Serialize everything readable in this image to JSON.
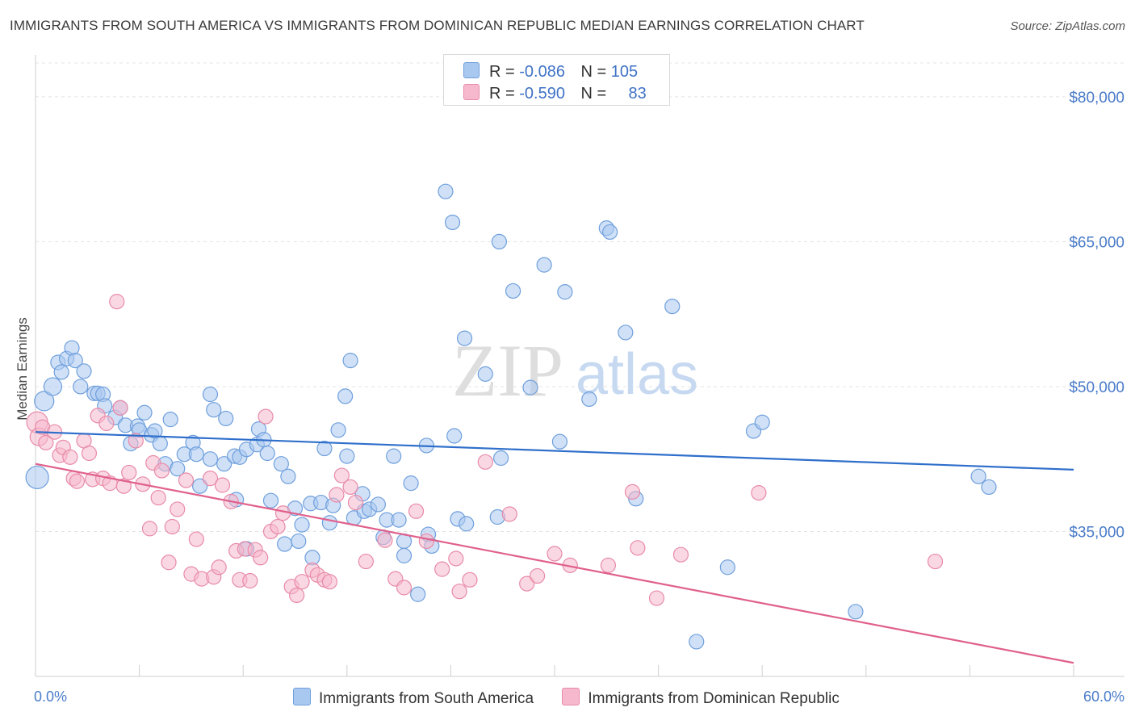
{
  "title": "IMMIGRANTS FROM SOUTH AMERICA VS IMMIGRANTS FROM DOMINICAN REPUBLIC MEDIAN EARNINGS CORRELATION CHART",
  "source": "Source: ZipAtlas.com",
  "watermark": {
    "zip": "ZIP",
    "atlas": "atlas"
  },
  "legend": {
    "rows": [
      {
        "r_label": "R =",
        "r_value": "-0.086",
        "n_label": "N =",
        "n_value": "105",
        "color": "#a9c8f0"
      },
      {
        "r_label": "R =",
        "r_value": "-0.590",
        "n_label": "N =",
        "n_value": "83",
        "color": "#f6b8cc"
      }
    ]
  },
  "chart_data": {
    "type": "scatter",
    "title": "IMMIGRANTS FROM SOUTH AMERICA VS IMMIGRANTS FROM DOMINICAN REPUBLIC MEDIAN EARNINGS CORRELATION CHART",
    "xlabel": "",
    "ylabel": "Median Earnings",
    "xlim": [
      0,
      60
    ],
    "ylim": [
      20000,
      84000
    ],
    "x_tick_labels": [
      "0.0%",
      "60.0%"
    ],
    "y_ticks": [
      35000,
      50000,
      65000,
      80000
    ],
    "y_tick_labels": [
      "$35,000",
      "$50,000",
      "$65,000",
      "$80,000"
    ],
    "grid": true,
    "legend_position": "top-center",
    "series": [
      {
        "name": "Immigrants from South America",
        "color": "#a9c8f0",
        "stroke": "#6f9fdc",
        "trend_color": "#2f6fcb",
        "trend": {
          "x": [
            0,
            60
          ],
          "y": [
            45300,
            41400
          ]
        },
        "points": [
          [
            0.1,
            40600,
            14
          ],
          [
            0.5,
            48500,
            12
          ],
          [
            1.0,
            50000,
            11
          ],
          [
            1.3,
            52500,
            9
          ],
          [
            1.5,
            51500,
            9
          ],
          [
            1.8,
            52900,
            9
          ],
          [
            2.1,
            54000,
            9
          ],
          [
            2.3,
            52700,
            9
          ],
          [
            2.6,
            50000,
            9
          ],
          [
            2.8,
            51600,
            9
          ],
          [
            3.4,
            49300,
            9
          ],
          [
            3.6,
            49300,
            9
          ],
          [
            3.9,
            49200,
            9
          ],
          [
            4.0,
            48000,
            9
          ],
          [
            4.6,
            46800,
            9
          ],
          [
            4.9,
            47800,
            9
          ],
          [
            5.2,
            46000,
            9
          ],
          [
            5.5,
            44100,
            9
          ],
          [
            5.9,
            45900,
            9
          ],
          [
            6.0,
            45500,
            9
          ],
          [
            6.3,
            47300,
            9
          ],
          [
            6.7,
            45000,
            9
          ],
          [
            6.9,
            45400,
            9
          ],
          [
            7.2,
            44100,
            9
          ],
          [
            7.8,
            46600,
            9
          ],
          [
            7.5,
            42000,
            9
          ],
          [
            8.2,
            41500,
            9
          ],
          [
            8.6,
            43000,
            9
          ],
          [
            9.1,
            44200,
            9
          ],
          [
            9.3,
            43000,
            9
          ],
          [
            9.5,
            39700,
            9
          ],
          [
            10.1,
            42500,
            9
          ],
          [
            10.1,
            49200,
            9
          ],
          [
            10.3,
            47600,
            9
          ],
          [
            10.9,
            42000,
            9
          ],
          [
            11.0,
            46700,
            9
          ],
          [
            11.5,
            42800,
            9
          ],
          [
            11.6,
            38300,
            9
          ],
          [
            11.8,
            42700,
            9
          ],
          [
            12.2,
            43500,
            9
          ],
          [
            12.2,
            33200,
            9
          ],
          [
            12.8,
            44000,
            9
          ],
          [
            12.9,
            45600,
            9
          ],
          [
            13.2,
            44500,
            9
          ],
          [
            13.4,
            43100,
            9
          ],
          [
            13.6,
            38200,
            9
          ],
          [
            14.2,
            42000,
            9
          ],
          [
            14.4,
            33700,
            9
          ],
          [
            14.6,
            40700,
            9
          ],
          [
            15.0,
            37400,
            9
          ],
          [
            15.2,
            34000,
            9
          ],
          [
            15.4,
            35700,
            9
          ],
          [
            15.9,
            37900,
            9
          ],
          [
            16.0,
            32300,
            9
          ],
          [
            16.5,
            38000,
            9
          ],
          [
            16.7,
            43600,
            9
          ],
          [
            17.0,
            35900,
            9
          ],
          [
            17.2,
            37700,
            9
          ],
          [
            17.5,
            45500,
            9
          ],
          [
            17.9,
            49000,
            9
          ],
          [
            18.0,
            42800,
            9
          ],
          [
            18.2,
            52700,
            9
          ],
          [
            18.4,
            36400,
            9
          ],
          [
            18.9,
            38900,
            9
          ],
          [
            19.0,
            37100,
            9
          ],
          [
            19.3,
            37300,
            9
          ],
          [
            19.8,
            37800,
            9
          ],
          [
            20.1,
            34400,
            9
          ],
          [
            20.3,
            36200,
            9
          ],
          [
            20.7,
            42800,
            9
          ],
          [
            21.0,
            36200,
            9
          ],
          [
            21.3,
            32500,
            9
          ],
          [
            21.3,
            34000,
            9
          ],
          [
            21.7,
            40000,
            9
          ],
          [
            22.1,
            28500,
            9
          ],
          [
            22.6,
            43900,
            9
          ],
          [
            22.7,
            34700,
            9
          ],
          [
            22.9,
            33500,
            9
          ],
          [
            23.7,
            70200,
            9
          ],
          [
            24.1,
            67000,
            9
          ],
          [
            24.2,
            44900,
            9
          ],
          [
            24.4,
            36300,
            9
          ],
          [
            24.8,
            55000,
            9
          ],
          [
            24.9,
            35800,
            9
          ],
          [
            26.0,
            51300,
            9
          ],
          [
            26.8,
            65000,
            9
          ],
          [
            26.9,
            42600,
            9
          ],
          [
            26.7,
            36500,
            9
          ],
          [
            27.6,
            59900,
            9
          ],
          [
            28.6,
            49900,
            9
          ],
          [
            29.4,
            62600,
            9
          ],
          [
            30.3,
            44300,
            9
          ],
          [
            30.6,
            59800,
            9
          ],
          [
            32.0,
            48700,
            9
          ],
          [
            33.0,
            66400,
            9
          ],
          [
            33.2,
            66000,
            9
          ],
          [
            34.1,
            55600,
            9
          ],
          [
            34.7,
            38400,
            9
          ],
          [
            36.8,
            58300,
            9
          ],
          [
            38.2,
            23600,
            9
          ],
          [
            40.0,
            31300,
            9
          ],
          [
            41.5,
            45400,
            9
          ],
          [
            42.0,
            46300,
            9
          ],
          [
            47.4,
            26700,
            9
          ],
          [
            54.5,
            40700,
            9
          ],
          [
            55.1,
            39600,
            9
          ]
        ]
      },
      {
        "name": "Immigrants from Dominican Republic",
        "color": "#f6b8cc",
        "stroke": "#e88aa8",
        "trend_color": "#e0608c",
        "trend": {
          "x": [
            0,
            60
          ],
          "y": [
            42000,
            21400
          ]
        },
        "points": [
          [
            0.1,
            46300,
            13
          ],
          [
            0.2,
            44800,
            11
          ],
          [
            0.4,
            45800,
            9
          ],
          [
            0.6,
            44200,
            9
          ],
          [
            1.1,
            45300,
            9
          ],
          [
            1.4,
            42900,
            9
          ],
          [
            1.6,
            43700,
            9
          ],
          [
            2.0,
            42700,
            9
          ],
          [
            2.2,
            40500,
            9
          ],
          [
            2.4,
            40200,
            9
          ],
          [
            2.8,
            44400,
            9
          ],
          [
            3.1,
            43100,
            9
          ],
          [
            3.3,
            40400,
            9
          ],
          [
            3.6,
            47000,
            9
          ],
          [
            3.9,
            40500,
            9
          ],
          [
            4.1,
            46200,
            9
          ],
          [
            4.3,
            40000,
            9
          ],
          [
            4.7,
            58800,
            9
          ],
          [
            4.9,
            47800,
            9
          ],
          [
            5.1,
            39700,
            9
          ],
          [
            5.4,
            41100,
            9
          ],
          [
            5.8,
            44400,
            9
          ],
          [
            6.2,
            39900,
            9
          ],
          [
            6.6,
            35300,
            9
          ],
          [
            6.8,
            42100,
            9
          ],
          [
            7.1,
            38500,
            9
          ],
          [
            7.3,
            41300,
            9
          ],
          [
            7.7,
            31800,
            9
          ],
          [
            7.9,
            35500,
            9
          ],
          [
            8.2,
            37300,
            9
          ],
          [
            8.7,
            40300,
            9
          ],
          [
            9.0,
            30600,
            9
          ],
          [
            9.3,
            34200,
            9
          ],
          [
            9.6,
            30100,
            9
          ],
          [
            10.1,
            40500,
            9
          ],
          [
            10.3,
            30300,
            9
          ],
          [
            10.6,
            31300,
            9
          ],
          [
            10.8,
            39800,
            9
          ],
          [
            11.3,
            38100,
            9
          ],
          [
            11.6,
            33000,
            9
          ],
          [
            11.8,
            30000,
            9
          ],
          [
            12.1,
            33200,
            9
          ],
          [
            12.4,
            29900,
            9
          ],
          [
            12.7,
            33100,
            9
          ],
          [
            13.0,
            32300,
            9
          ],
          [
            13.3,
            46900,
            9
          ],
          [
            13.6,
            35000,
            9
          ],
          [
            14.0,
            35500,
            9
          ],
          [
            14.3,
            36900,
            9
          ],
          [
            14.8,
            29300,
            9
          ],
          [
            15.1,
            28400,
            9
          ],
          [
            15.4,
            29800,
            9
          ],
          [
            16.0,
            31000,
            9
          ],
          [
            16.3,
            30500,
            9
          ],
          [
            16.7,
            30000,
            9
          ],
          [
            17.0,
            29800,
            9
          ],
          [
            17.4,
            38800,
            9
          ],
          [
            17.7,
            40800,
            9
          ],
          [
            18.2,
            39600,
            9
          ],
          [
            18.5,
            38000,
            9
          ],
          [
            19.1,
            31900,
            9
          ],
          [
            20.2,
            34100,
            9
          ],
          [
            20.8,
            30100,
            9
          ],
          [
            21.3,
            29200,
            9
          ],
          [
            22.0,
            37100,
            9
          ],
          [
            22.6,
            34000,
            9
          ],
          [
            23.5,
            31100,
            9
          ],
          [
            24.3,
            32200,
            9
          ],
          [
            25.1,
            30000,
            9
          ],
          [
            26.0,
            42200,
            9
          ],
          [
            27.4,
            36800,
            9
          ],
          [
            28.4,
            29600,
            9
          ],
          [
            29.0,
            30400,
            9
          ],
          [
            30.0,
            32700,
            9
          ],
          [
            30.9,
            31500,
            9
          ],
          [
            33.1,
            31500,
            9
          ],
          [
            34.5,
            39100,
            9
          ],
          [
            34.8,
            33300,
            9
          ],
          [
            35.9,
            28100,
            9
          ],
          [
            37.3,
            32600,
            9
          ],
          [
            41.8,
            39000,
            9
          ],
          [
            52.0,
            31900,
            9
          ],
          [
            24.5,
            28800,
            9
          ]
        ]
      }
    ]
  },
  "bottom_legend": [
    {
      "label": "Immigrants from South America",
      "color": "#a9c8f0"
    },
    {
      "label": "Immigrants from Dominican Republic",
      "color": "#f6b8cc"
    }
  ]
}
